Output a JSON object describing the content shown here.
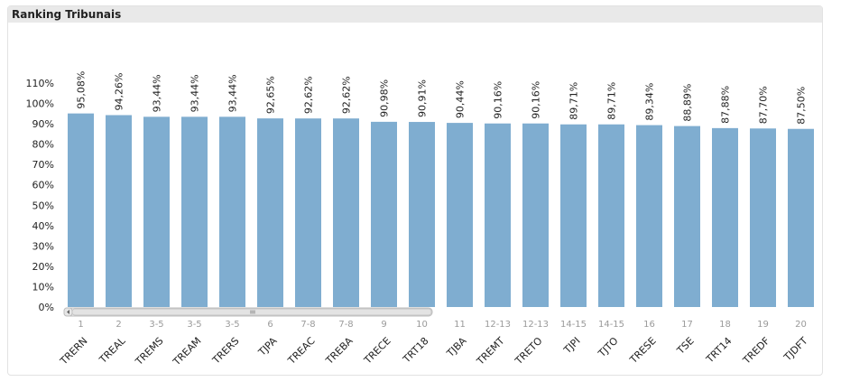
{
  "panel": {
    "title": "Ranking Tribunais"
  },
  "chart_data": {
    "type": "bar",
    "categories": [
      "TRERN",
      "TREAL",
      "TREMS",
      "TREAM",
      "TRERS",
      "TJPA",
      "TREAC",
      "TREBA",
      "TRECE",
      "TRT18",
      "TJBA",
      "TREMT",
      "TRETO",
      "TJPI",
      "TJTO",
      "TRESE",
      "TSE",
      "TRT14",
      "TREDF",
      "TJDFT"
    ],
    "ranks": [
      "1",
      "2",
      "3-5",
      "3-5",
      "3-5",
      "6",
      "7-8",
      "7-8",
      "9",
      "10",
      "11",
      "12-13",
      "12-13",
      "14-15",
      "14-15",
      "16",
      "17",
      "18",
      "19",
      "20"
    ],
    "values": [
      95.08,
      94.26,
      93.44,
      93.44,
      93.44,
      92.65,
      92.62,
      92.62,
      90.98,
      90.91,
      90.44,
      90.16,
      90.16,
      89.71,
      89.71,
      89.34,
      88.89,
      87.88,
      87.7,
      87.5
    ],
    "data_labels": [
      "95,08%",
      "94,26%",
      "93,44%",
      "93,44%",
      "93,44%",
      "92,65%",
      "92,62%",
      "92,62%",
      "90,98%",
      "90,91%",
      "90,44%",
      "90,16%",
      "90,16%",
      "89,71%",
      "89,71%",
      "89,34%",
      "88,89%",
      "87,88%",
      "87,70%",
      "87,50%"
    ],
    "yticks": [
      "0%",
      "10%",
      "20%",
      "30%",
      "40%",
      "50%",
      "60%",
      "70%",
      "80%",
      "90%",
      "100%",
      "110%"
    ],
    "ylim": [
      0,
      110
    ],
    "grid": false,
    "bar_color": "#7fadd0"
  }
}
